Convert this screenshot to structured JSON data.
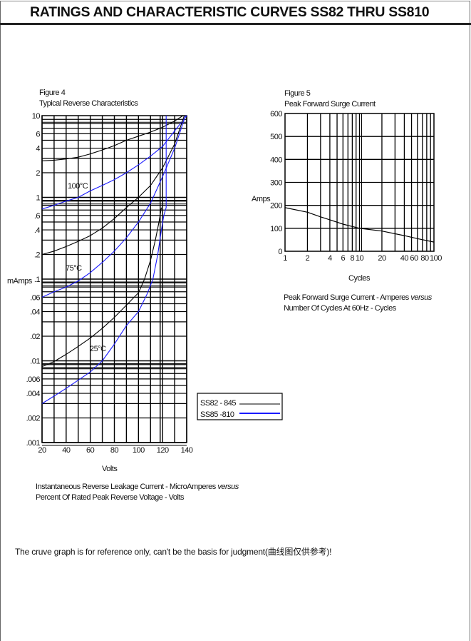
{
  "header": {
    "title": "RATINGS AND CHARACTERISTIC CURVES SS82 THRU SS810"
  },
  "footer": {
    "note": "The cruve graph is for reference only, can't be the basis for judgment(曲线图仅供参考)!"
  },
  "chart_data": [
    {
      "type": "line",
      "figure": "Figure 4",
      "title": "Typical Reverse Characteristics",
      "xlabel": "Volts",
      "ylabel": "mAmps",
      "caption": [
        "Instantaneous Reverse Leakage Current  - MicroAmperes ",
        "versus",
        "Percent Of Rated Peak Reverse Voltage - Volts"
      ],
      "xlim": [
        20,
        140
      ],
      "ylim": [
        0.001,
        10
      ],
      "yscale": "log",
      "grid": true,
      "xticks": [
        "20",
        "40",
        "60",
        "80",
        "100",
        "120",
        "140"
      ],
      "yticks": [
        "10",
        "6",
        "4",
        "2",
        "1",
        ".6",
        ".4",
        ".2",
        ".1",
        ".06",
        ".04",
        ".02",
        ".01",
        ".006",
        ".004",
        ".002",
        ".001"
      ],
      "annotations": [
        "100°C",
        "75°C",
        "25°C"
      ],
      "legend": {
        "placement": "bottom-right",
        "entries": [
          {
            "label": "SS82 - 845",
            "color": "#000000"
          },
          {
            "label": "SS85 -810",
            "color": "#1a1aff"
          }
        ]
      },
      "series": [
        {
          "name": "SS82 - 845",
          "temp": "100°C",
          "color": "#000000",
          "points": [
            [
              20,
              2.8
            ],
            [
              30,
              2.85
            ],
            [
              40,
              2.95
            ],
            [
              50,
              3.1
            ],
            [
              60,
              3.4
            ],
            [
              70,
              3.8
            ],
            [
              80,
              4.3
            ],
            [
              90,
              5
            ],
            [
              100,
              5.6
            ],
            [
              110,
              6.3
            ],
            [
              120,
              7.2
            ],
            [
              130,
              8.6
            ],
            [
              137,
              10
            ]
          ]
        },
        {
          "name": "SS85 -810",
          "temp": "100°C",
          "color": "#1a1aff",
          "points": [
            [
              20,
              0.72
            ],
            [
              30,
              0.8
            ],
            [
              40,
              0.9
            ],
            [
              50,
              1.0
            ],
            [
              60,
              1.2
            ],
            [
              70,
              1.4
            ],
            [
              80,
              1.65
            ],
            [
              90,
              2.0
            ],
            [
              100,
              2.5
            ],
            [
              110,
              3.2
            ],
            [
              120,
              4.2
            ],
            [
              130,
              6.5
            ],
            [
              140,
              10
            ]
          ]
        },
        {
          "name": "SS82 - 845",
          "temp": "75°C",
          "color": "#000000",
          "points": [
            [
              20,
              0.2
            ],
            [
              30,
              0.22
            ],
            [
              40,
              0.25
            ],
            [
              50,
              0.29
            ],
            [
              60,
              0.34
            ],
            [
              70,
              0.42
            ],
            [
              80,
              0.55
            ],
            [
              90,
              0.75
            ],
            [
              100,
              1.0
            ],
            [
              110,
              1.4
            ],
            [
              120,
              2.3
            ],
            [
              130,
              4.5
            ],
            [
              138,
              10
            ]
          ]
        },
        {
          "name": "SS85 -810",
          "temp": "75°C",
          "color": "#1a1aff",
          "points": [
            [
              20,
              0.06
            ],
            [
              30,
              0.07
            ],
            [
              40,
              0.08
            ],
            [
              50,
              0.095
            ],
            [
              60,
              0.12
            ],
            [
              70,
              0.16
            ],
            [
              80,
              0.22
            ],
            [
              90,
              0.32
            ],
            [
              100,
              0.5
            ],
            [
              110,
              0.85
            ],
            [
              120,
              1.8
            ],
            [
              130,
              4
            ],
            [
              139,
              10
            ]
          ]
        },
        {
          "name": "SS82 - 845",
          "temp": "25°C",
          "color": "#000000",
          "points": [
            [
              20,
              0.0085
            ],
            [
              30,
              0.0098
            ],
            [
              40,
              0.012
            ],
            [
              50,
              0.015
            ],
            [
              60,
              0.019
            ],
            [
              70,
              0.025
            ],
            [
              80,
              0.034
            ],
            [
              90,
              0.048
            ],
            [
              100,
              0.068
            ],
            [
              105,
              0.1
            ],
            [
              110,
              0.17
            ],
            [
              114,
              0.3
            ],
            [
              117,
              0.5
            ],
            [
              119,
              0.75
            ]
          ]
        },
        {
          "name": "SS85 -810",
          "temp": "25°C",
          "color": "#1a1aff",
          "points": [
            [
              20,
              0.003
            ],
            [
              30,
              0.0037
            ],
            [
              40,
              0.0046
            ],
            [
              50,
              0.0058
            ],
            [
              60,
              0.0073
            ],
            [
              70,
              0.01
            ],
            [
              80,
              0.016
            ],
            [
              90,
              0.027
            ],
            [
              100,
              0.04
            ],
            [
              107,
              0.065
            ],
            [
              112,
              0.1
            ],
            [
              116,
              0.2
            ],
            [
              119,
              0.4
            ],
            [
              121,
              0.6
            ],
            [
              123,
              0.75
            ],
            [
              123,
              10
            ]
          ]
        }
      ]
    },
    {
      "type": "line",
      "figure": "Figure 5",
      "title": "Peak Forward Surge Current",
      "xlabel": "Cycles",
      "ylabel": "Amps",
      "caption": [
        "Peak Forward Surge Current - Amperes ",
        "versus",
        "Number Of Cycles At 60Hz - Cycles"
      ],
      "xlim": [
        1,
        100
      ],
      "xscale": "log",
      "ylim": [
        0,
        600
      ],
      "grid": true,
      "xticks": [
        "1",
        "2",
        "4",
        "6",
        "8",
        "10",
        "20",
        "40",
        "60",
        "80",
        "100"
      ],
      "yticks": [
        "600",
        "500",
        "400",
        "300",
        "200",
        "100",
        "0"
      ],
      "series": [
        {
          "color": "#000000",
          "points": [
            [
              1,
              190
            ],
            [
              2,
              170
            ],
            [
              3,
              150
            ],
            [
              4,
              137
            ],
            [
              6,
              118
            ],
            [
              8,
              108
            ],
            [
              10,
              100
            ],
            [
              20,
              88
            ],
            [
              40,
              68
            ],
            [
              60,
              55
            ],
            [
              100,
              40
            ]
          ]
        }
      ]
    }
  ]
}
